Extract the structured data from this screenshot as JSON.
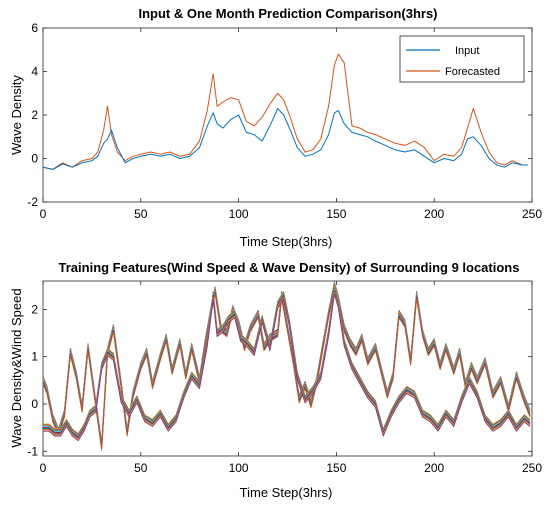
{
  "chart_data": [
    {
      "type": "line",
      "title": "Input & One Month Prediction Comparison(3hrs)",
      "xlabel": "Time Step(3hrs)",
      "ylabel": "Wave Density",
      "xlim": [
        0,
        250
      ],
      "ylim": [
        -2,
        6
      ],
      "xticks": [
        "0",
        "50",
        "100",
        "150",
        "200",
        "250"
      ],
      "yticks": [
        "-2",
        "0",
        "2",
        "4",
        "6"
      ],
      "grid": false,
      "legend_position": "top-right",
      "series": [
        {
          "name": "Input",
          "color": "#0072BD",
          "x": [
            0,
            5,
            10,
            15,
            20,
            25,
            28,
            31,
            33,
            35,
            38,
            42,
            46,
            50,
            55,
            60,
            65,
            70,
            75,
            80,
            84,
            87,
            89,
            92,
            96,
            100,
            104,
            108,
            112,
            116,
            120,
            123,
            126,
            130,
            134,
            138,
            142,
            146,
            149,
            151,
            154,
            158,
            162,
            166,
            170,
            175,
            180,
            185,
            190,
            195,
            200,
            205,
            210,
            214,
            217,
            220,
            224,
            228,
            232,
            236,
            240,
            245,
            248
          ],
          "values": [
            -0.4,
            -0.5,
            -0.25,
            -0.4,
            -0.2,
            -0.1,
            0.1,
            0.7,
            0.9,
            1.3,
            0.5,
            -0.2,
            0.0,
            0.1,
            0.2,
            0.1,
            0.2,
            0.0,
            0.1,
            0.5,
            1.5,
            2.1,
            1.6,
            1.4,
            1.8,
            2.0,
            1.2,
            1.1,
            0.8,
            1.5,
            2.3,
            2.0,
            1.4,
            0.5,
            0.1,
            0.2,
            0.4,
            1.1,
            2.1,
            2.2,
            1.6,
            1.2,
            1.1,
            1.0,
            0.8,
            0.6,
            0.4,
            0.3,
            0.4,
            0.1,
            -0.2,
            0.0,
            -0.1,
            0.2,
            0.9,
            1.0,
            0.6,
            0.0,
            -0.3,
            -0.4,
            -0.2,
            -0.3,
            -0.3
          ]
        },
        {
          "name": "Forecasted",
          "color": "#D95319",
          "x": [
            0,
            5,
            10,
            15,
            20,
            25,
            28,
            31,
            33,
            35,
            38,
            42,
            46,
            50,
            55,
            60,
            65,
            70,
            75,
            80,
            84,
            87,
            89,
            92,
            96,
            100,
            104,
            108,
            112,
            116,
            120,
            123,
            126,
            130,
            134,
            138,
            142,
            146,
            149,
            151,
            154,
            158,
            162,
            166,
            170,
            175,
            180,
            185,
            190,
            195,
            200,
            205,
            210,
            214,
            217,
            220,
            224,
            228,
            232,
            236,
            240,
            245,
            248
          ],
          "values": [
            -0.4,
            -0.5,
            -0.2,
            -0.4,
            -0.1,
            0.0,
            0.3,
            1.3,
            2.4,
            1.1,
            0.3,
            -0.1,
            0.1,
            0.2,
            0.3,
            0.2,
            0.3,
            0.1,
            0.2,
            0.8,
            2.2,
            3.9,
            2.4,
            2.6,
            2.8,
            2.7,
            1.7,
            1.5,
            1.9,
            2.5,
            3.0,
            2.7,
            2.0,
            0.9,
            0.3,
            0.4,
            0.9,
            2.4,
            4.3,
            4.8,
            4.4,
            1.5,
            1.4,
            1.2,
            1.1,
            0.9,
            0.7,
            0.6,
            0.8,
            0.5,
            -0.1,
            0.2,
            0.1,
            0.5,
            1.4,
            2.3,
            1.2,
            0.3,
            -0.2,
            -0.3,
            -0.1,
            -0.3,
            -0.3
          ]
        }
      ]
    },
    {
      "type": "line",
      "title": "Training Features(Wind Speed & Wave Density) of Surrounding 9 locations",
      "xlabel": "Time Step(3hrs)",
      "ylabel": "Wave Density&Wind Speed",
      "xlim": [
        0,
        250
      ],
      "ylim": [
        -1.1,
        2.6
      ],
      "xticks": [
        "0",
        "50",
        "100",
        "150",
        "200",
        "250"
      ],
      "yticks": [
        "-1",
        "0",
        "1",
        "2"
      ],
      "grid": false,
      "series_colors": [
        "#0072BD",
        "#D95319",
        "#EDB120",
        "#7E2F8E",
        "#77AC30",
        "#4DBEEE",
        "#A2142F",
        "#0072BD",
        "#D95319",
        "#EDB120",
        "#7E2F8E",
        "#77AC30",
        "#4DBEEE",
        "#A2142F",
        "#0072BD",
        "#D95319",
        "#EDB120",
        "#7E2F8E"
      ],
      "groups": [
        {
          "x": [
            0,
            2,
            5,
            8,
            11,
            14,
            17,
            20,
            23,
            27,
            30,
            33,
            36,
            40,
            43,
            46,
            50,
            53,
            56,
            60,
            63,
            66,
            70,
            73,
            76,
            80,
            83,
            86,
            88,
            91,
            94,
            97,
            100,
            103,
            106,
            110,
            113,
            116,
            120,
            122,
            125,
            128,
            131,
            134,
            137,
            140,
            143,
            146,
            149,
            151,
            154,
            157,
            160,
            163,
            166,
            170,
            173,
            176,
            179,
            182,
            185,
            188,
            191,
            194,
            197,
            200,
            203,
            206,
            210,
            213,
            216,
            219,
            222,
            226,
            230,
            234,
            238,
            242,
            246,
            249
          ],
          "values": [
            0.5,
            0.3,
            -0.3,
            -0.6,
            -0.2,
            1.1,
            0.6,
            -0.1,
            1.2,
            0.0,
            -0.9,
            1.1,
            1.6,
            0.4,
            -0.6,
            0.2,
            0.8,
            1.1,
            0.4,
            1.0,
            1.4,
            0.7,
            1.3,
            0.6,
            1.2,
            0.5,
            1.3,
            2.0,
            2.4,
            1.6,
            1.5,
            2.0,
            1.7,
            1.2,
            1.6,
            1.9,
            1.2,
            1.4,
            1.5,
            2.3,
            1.6,
            0.9,
            0.1,
            0.4,
            0.0,
            0.5,
            1.2,
            1.9,
            2.5,
            2.2,
            1.6,
            1.3,
            1.1,
            1.4,
            0.9,
            1.2,
            0.7,
            0.2,
            0.6,
            1.9,
            1.7,
            0.9,
            2.3,
            1.5,
            1.1,
            1.3,
            0.8,
            1.2,
            0.7,
            1.1,
            0.4,
            0.8,
            0.5,
            0.9,
            0.2,
            0.5,
            -0.1,
            0.6,
            0.1,
            -0.2
          ]
        },
        {
          "x": [
            0,
            3,
            6,
            9,
            12,
            15,
            18,
            21,
            24,
            27,
            30,
            33,
            36,
            40,
            44,
            48,
            52,
            56,
            60,
            64,
            68,
            72,
            76,
            80,
            84,
            87,
            89,
            92,
            95,
            98,
            101,
            104,
            108,
            112,
            116,
            120,
            123,
            126,
            130,
            134,
            138,
            142,
            146,
            149,
            151,
            154,
            158,
            162,
            166,
            170,
            174,
            178,
            182,
            186,
            190,
            194,
            198,
            202,
            206,
            210,
            214,
            218,
            222,
            226,
            230,
            234,
            238,
            242,
            246,
            249
          ],
          "values": [
            -0.5,
            -0.5,
            -0.6,
            -0.6,
            -0.4,
            -0.6,
            -0.7,
            -0.5,
            -0.2,
            -0.1,
            0.8,
            1.1,
            1.0,
            0.1,
            -0.2,
            0.1,
            -0.3,
            -0.4,
            -0.2,
            -0.5,
            -0.3,
            0.2,
            0.6,
            0.4,
            1.3,
            2.3,
            1.5,
            1.6,
            1.8,
            1.9,
            1.4,
            1.3,
            1.1,
            1.8,
            1.2,
            2.1,
            2.3,
            1.7,
            0.6,
            0.1,
            0.3,
            0.6,
            1.5,
            2.4,
            2.1,
            1.3,
            0.8,
            0.5,
            0.2,
            0.0,
            -0.6,
            -0.2,
            0.1,
            0.3,
            0.2,
            -0.2,
            -0.3,
            -0.5,
            -0.2,
            -0.4,
            0.1,
            0.5,
            0.2,
            -0.3,
            -0.5,
            -0.4,
            -0.2,
            -0.5,
            -0.3,
            -0.4
          ]
        }
      ]
    }
  ]
}
